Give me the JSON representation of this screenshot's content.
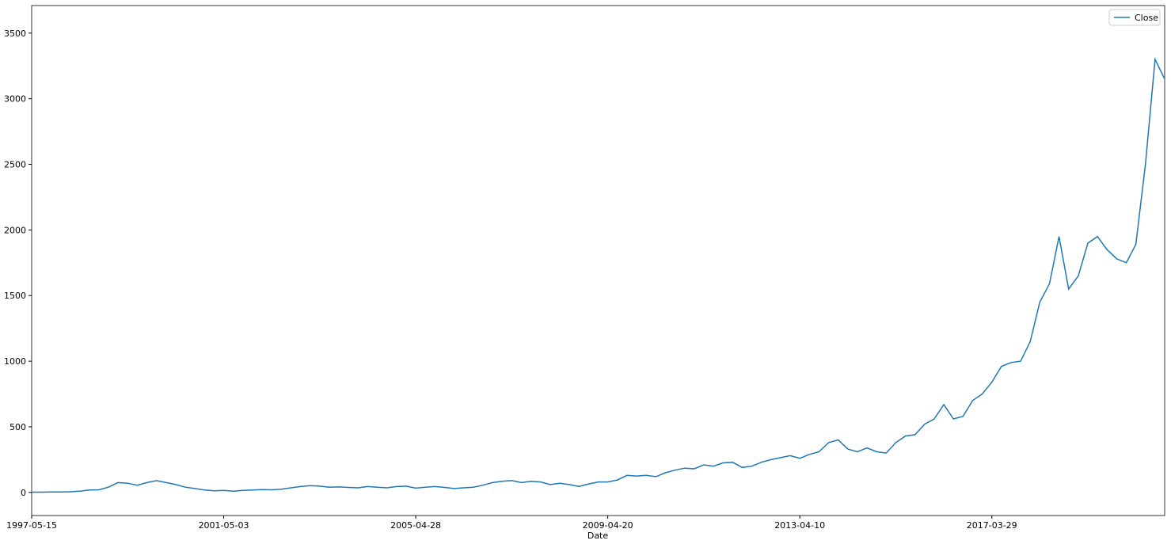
{
  "chart_data": {
    "type": "line",
    "xlabel": "Date",
    "categories": [
      "1997-05-15",
      null,
      null,
      null,
      null,
      null,
      null,
      null,
      null,
      null,
      null,
      null,
      null,
      null,
      null,
      null,
      null,
      null,
      null,
      null,
      "2001-05-03",
      null,
      null,
      null,
      null,
      null,
      null,
      null,
      null,
      null,
      null,
      null,
      null,
      null,
      null,
      null,
      null,
      null,
      null,
      null,
      "2005-04-28",
      null,
      null,
      null,
      null,
      null,
      null,
      null,
      null,
      null,
      null,
      null,
      null,
      null,
      null,
      null,
      null,
      null,
      null,
      null,
      "2009-04-20",
      null,
      null,
      null,
      null,
      null,
      null,
      null,
      null,
      null,
      null,
      null,
      null,
      null,
      null,
      null,
      null,
      null,
      null,
      null,
      "2013-04-10",
      null,
      null,
      null,
      null,
      null,
      null,
      null,
      null,
      null,
      null,
      null,
      null,
      null,
      null,
      null,
      null,
      null,
      null,
      null,
      "2017-03-29",
      null,
      null,
      null,
      null,
      null,
      null,
      null,
      null,
      null,
      null,
      null,
      null,
      null,
      null,
      null,
      null,
      null,
      null
    ],
    "series": [
      {
        "name": "Close",
        "color": "#1f77b4",
        "values": [
          2,
          2,
          3,
          4,
          5,
          10,
          18,
          20,
          40,
          75,
          70,
          55,
          75,
          90,
          75,
          60,
          40,
          30,
          18,
          12,
          16,
          10,
          15,
          18,
          22,
          20,
          25,
          35,
          45,
          52,
          48,
          40,
          42,
          38,
          35,
          45,
          40,
          35,
          45,
          48,
          33,
          40,
          45,
          38,
          30,
          35,
          40,
          55,
          75,
          85,
          90,
          75,
          85,
          80,
          60,
          70,
          60,
          45,
          65,
          80,
          80,
          95,
          130,
          125,
          130,
          120,
          150,
          170,
          185,
          180,
          210,
          200,
          225,
          230,
          190,
          200,
          230,
          250,
          265,
          280,
          260,
          290,
          310,
          380,
          400,
          330,
          310,
          340,
          310,
          300,
          380,
          430,
          440,
          520,
          560,
          670,
          560,
          580,
          700,
          750,
          840,
          960,
          990,
          1000,
          1150,
          1450,
          1590,
          1950,
          1550,
          1650,
          1900,
          1950,
          1850,
          1780,
          1750,
          1890,
          2500,
          3300,
          3150
        ]
      }
    ],
    "ylim": [
      -176,
      3710
    ],
    "yticks": [
      0,
      500,
      1000,
      1500,
      2000,
      2500,
      3000,
      3500
    ],
    "legend": "upper right"
  }
}
